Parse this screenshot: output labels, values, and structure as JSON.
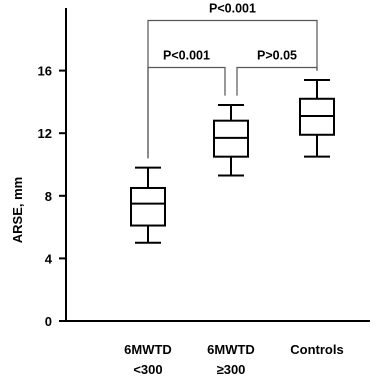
{
  "chart_data": {
    "type": "box",
    "title": "",
    "xlabel": "",
    "ylabel": "ARSE, mm",
    "ylim": [
      0,
      20
    ],
    "yticks": [
      0,
      4,
      8,
      12,
      16
    ],
    "categories": [
      {
        "lines": [
          "6MWTD",
          "<300"
        ],
        "underline_index": null
      },
      {
        "lines": [
          "6MWTD",
          "≥300"
        ],
        "underline_index": null
      },
      {
        "lines": [
          "Controls"
        ],
        "underline_index": null
      }
    ],
    "boxes": [
      {
        "min": 5.0,
        "q1": 6.1,
        "median": 7.5,
        "q3": 8.5,
        "max": 9.8
      },
      {
        "min": 9.3,
        "q1": 10.5,
        "median": 11.7,
        "q3": 12.8,
        "max": 13.8
      },
      {
        "min": 10.5,
        "q1": 11.9,
        "median": 13.1,
        "q3": 14.2,
        "max": 15.4
      }
    ],
    "comparisons": [
      {
        "from": 0,
        "to": 2,
        "label": "P<0.001",
        "level": 19.2
      },
      {
        "from": 0,
        "to": 1,
        "label": "P<0.001",
        "level": 16.2
      },
      {
        "from": 1,
        "to": 2,
        "label": "P>0.05",
        "level": 16.2
      }
    ],
    "grid": false,
    "legend": "none"
  }
}
